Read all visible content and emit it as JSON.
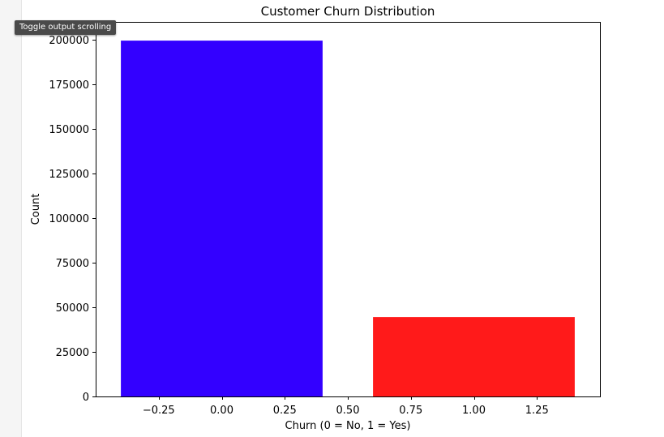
{
  "tooltip": {
    "label": "Toggle output scrolling"
  },
  "chart_data": {
    "type": "bar",
    "title": "Customer Churn Distribution",
    "xlabel": "Churn (0 = No, 1 = Yes)",
    "ylabel": "Count",
    "x": [
      0,
      1
    ],
    "values": [
      199500,
      44500
    ],
    "bar_width": 0.8,
    "colors": [
      "#3300ff",
      "#ff1a1a"
    ],
    "xlim": [
      -0.5,
      1.5
    ],
    "ylim": [
      0,
      210000
    ],
    "xticks": [
      -0.25,
      0.0,
      0.25,
      0.5,
      0.75,
      1.0,
      1.25
    ],
    "xtick_labels": [
      "−0.25",
      "0.00",
      "0.25",
      "0.50",
      "0.75",
      "1.00",
      "1.25"
    ],
    "yticks": [
      0,
      25000,
      50000,
      75000,
      100000,
      125000,
      150000,
      175000,
      200000
    ],
    "ytick_labels": [
      "0",
      "25000",
      "50000",
      "75000",
      "100000",
      "125000",
      "150000",
      "175000",
      "200000"
    ],
    "grid": false,
    "legend": "none"
  }
}
